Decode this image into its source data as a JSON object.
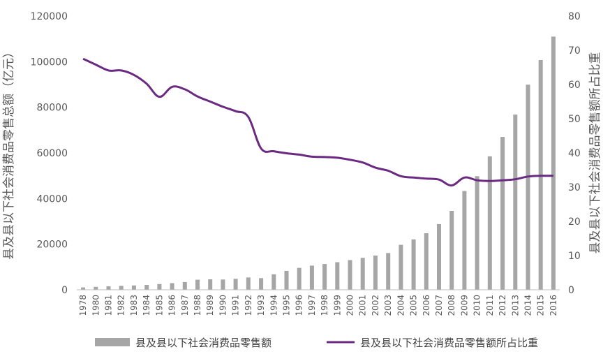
{
  "chart_data": {
    "type": "bar+line",
    "categories": [
      "1978",
      "1980",
      "1981",
      "1982",
      "1983",
      "1984",
      "1985",
      "1986",
      "1987",
      "1988",
      "1989",
      "1990",
      "1991",
      "1992",
      "1993",
      "1994",
      "1995",
      "1996",
      "1997",
      "1998",
      "1999",
      "2000",
      "2001",
      "2002",
      "2003",
      "2004",
      "2005",
      "2006",
      "2007",
      "2008",
      "2009",
      "2010",
      "2011",
      "2012",
      "2013",
      "2014",
      "2015",
      "2016"
    ],
    "series": [
      {
        "name": "县及县以下社会消费品零售额",
        "type": "bar",
        "axis": "left",
        "color": "#a6a6a6",
        "values": [
          1050,
          1300,
          1500,
          1700,
          1900,
          2150,
          2500,
          2900,
          3400,
          4400,
          4600,
          4500,
          4800,
          5400,
          5100,
          6800,
          8300,
          9600,
          10600,
          11300,
          12100,
          13000,
          14000,
          15000,
          16100,
          19700,
          22100,
          24800,
          28800,
          34600,
          43300,
          49800,
          58500,
          67000,
          76800,
          89900,
          100700,
          111000
        ]
      },
      {
        "name": "县及县以下社会消费品零售额所占比重",
        "type": "line",
        "axis": "right",
        "color": "#6b2a82",
        "values": [
          67.5,
          65.8,
          64.1,
          64.1,
          62.8,
          60.2,
          56.4,
          59.3,
          58.6,
          56.5,
          55.0,
          53.5,
          52.2,
          50.5,
          41.3,
          40.5,
          39.9,
          39.5,
          38.9,
          38.8,
          38.6,
          38.0,
          37.2,
          35.7,
          34.8,
          33.2,
          32.8,
          32.5,
          32.2,
          30.5,
          32.8,
          32.0,
          31.8,
          32.0,
          32.3,
          33.1,
          33.3,
          33.3
        ]
      }
    ],
    "left_axis": {
      "label": "县及县以下社会消费品零售总额（亿元）",
      "ylim": [
        0,
        120000
      ],
      "ticks": [
        "0",
        "20000",
        "40000",
        "60000",
        "80000",
        "100000",
        "120000"
      ]
    },
    "right_axis": {
      "label": "县及县以下社会消费品零售额所占比重",
      "ylim": [
        0,
        80
      ],
      "ticks": [
        "0",
        "10",
        "20",
        "30",
        "40",
        "50",
        "60",
        "70",
        "80"
      ]
    },
    "grid": false,
    "legend_position": "bottom"
  }
}
